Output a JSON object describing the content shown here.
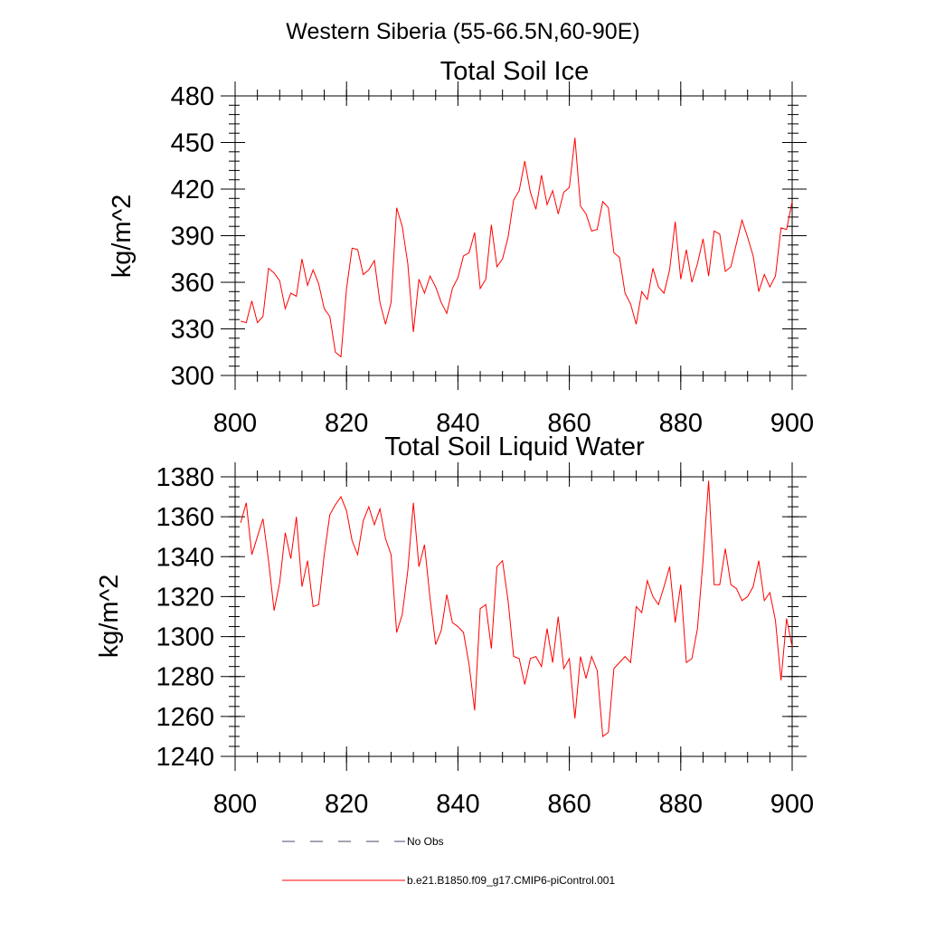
{
  "figure": {
    "title": "Western Siberia (55-66.5N,60-90E)"
  },
  "legend": {
    "entries": [
      {
        "label": "No Obs",
        "style": "dashed",
        "color": "#4a4a6a"
      },
      {
        "label": "b.e21.B1850.f09_g17.CMIP6-piControl.001",
        "style": "solid",
        "color": "#ff0000"
      }
    ]
  },
  "chart_data": [
    {
      "type": "line",
      "title": "Total Soil Ice",
      "xlabel": "",
      "ylabel": "kg/m^2",
      "xlim": [
        800,
        900
      ],
      "ylim": [
        300,
        480
      ],
      "x_ticks": [
        800,
        820,
        840,
        860,
        880,
        900
      ],
      "y_ticks": [
        300,
        330,
        360,
        390,
        420,
        450,
        480
      ],
      "y_minor_step": 6,
      "x_minor_step": 4,
      "grid": false,
      "series": [
        {
          "color": "#ff0000",
          "x": [
            801,
            802,
            803,
            804,
            805,
            806,
            807,
            808,
            809,
            810,
            811,
            812,
            813,
            814,
            815,
            816,
            817,
            818,
            819,
            820,
            821,
            822,
            823,
            824,
            825,
            826,
            827,
            828,
            829,
            830,
            831,
            832,
            833,
            834,
            835,
            836,
            837,
            838,
            839,
            840,
            841,
            842,
            843,
            844,
            845,
            846,
            847,
            848,
            849,
            850,
            851,
            852,
            853,
            854,
            855,
            856,
            857,
            858,
            859,
            860,
            861,
            862,
            863,
            864,
            865,
            866,
            867,
            868,
            869,
            870,
            871,
            872,
            873,
            874,
            875,
            876,
            877,
            878,
            879,
            880,
            881,
            882,
            883,
            884,
            885,
            886,
            887,
            888,
            889,
            890,
            891,
            892,
            893,
            894,
            895,
            896,
            897,
            898,
            899,
            900
          ],
          "values": [
            335,
            334,
            348,
            334,
            338,
            369,
            366,
            361,
            343,
            353,
            351,
            375,
            358,
            368,
            359,
            343,
            338,
            315,
            312,
            356,
            382,
            381,
            365,
            368,
            374,
            347,
            333,
            347,
            408,
            396,
            372,
            328,
            362,
            353,
            364,
            357,
            347,
            340,
            356,
            363,
            377,
            379,
            392,
            356,
            362,
            397,
            370,
            375,
            389,
            413,
            419,
            438,
            418,
            407,
            429,
            410,
            419,
            404,
            418,
            421,
            453,
            409,
            404,
            393,
            394,
            412,
            408,
            379,
            376,
            353,
            346,
            333,
            354,
            349,
            369,
            357,
            353,
            368,
            399,
            362,
            381,
            360,
            372,
            388,
            364,
            393,
            391,
            367,
            370,
            385,
            400,
            389,
            377,
            354,
            365,
            357,
            364,
            395,
            394,
            412
          ]
        }
      ]
    },
    {
      "type": "line",
      "title": "Total Soil Liquid Water",
      "xlabel": "",
      "ylabel": "kg/m^2",
      "xlim": [
        800,
        900
      ],
      "ylim": [
        1240,
        1380
      ],
      "x_ticks": [
        800,
        820,
        840,
        860,
        880,
        900
      ],
      "y_ticks": [
        1240,
        1260,
        1280,
        1300,
        1320,
        1340,
        1360,
        1380
      ],
      "y_minor_step": 5,
      "x_minor_step": 4,
      "grid": false,
      "series": [
        {
          "color": "#ff0000",
          "x": [
            801,
            802,
            803,
            804,
            805,
            806,
            807,
            808,
            809,
            810,
            811,
            812,
            813,
            814,
            815,
            816,
            817,
            818,
            819,
            820,
            821,
            822,
            823,
            824,
            825,
            826,
            827,
            828,
            829,
            830,
            831,
            832,
            833,
            834,
            835,
            836,
            837,
            838,
            839,
            840,
            841,
            842,
            843,
            844,
            845,
            846,
            847,
            848,
            849,
            850,
            851,
            852,
            853,
            854,
            855,
            856,
            857,
            858,
            859,
            860,
            861,
            862,
            863,
            864,
            865,
            866,
            867,
            868,
            869,
            870,
            871,
            872,
            873,
            874,
            875,
            876,
            877,
            878,
            879,
            880,
            881,
            882,
            883,
            884,
            885,
            886,
            887,
            888,
            889,
            890,
            891,
            892,
            893,
            894,
            895,
            896,
            897,
            898,
            899,
            900
          ],
          "values": [
            1357,
            1367,
            1341,
            1350,
            1359,
            1338,
            1313,
            1327,
            1352,
            1339,
            1360,
            1325,
            1338,
            1315,
            1316,
            1341,
            1361,
            1366,
            1370,
            1363,
            1348,
            1341,
            1358,
            1365,
            1356,
            1364,
            1349,
            1341,
            1302,
            1311,
            1333,
            1367,
            1335,
            1346,
            1319,
            1296,
            1303,
            1321,
            1307,
            1305,
            1302,
            1286,
            1263,
            1314,
            1316,
            1294,
            1335,
            1338,
            1318,
            1290,
            1289,
            1276,
            1289,
            1290,
            1285,
            1304,
            1287,
            1310,
            1284,
            1289,
            1259,
            1290,
            1279,
            1290,
            1283,
            1250,
            1252,
            1284,
            1287,
            1290,
            1287,
            1315,
            1312,
            1328,
            1320,
            1316,
            1325,
            1335,
            1307,
            1326,
            1287,
            1289,
            1304,
            1338,
            1378,
            1326,
            1326,
            1344,
            1326,
            1324,
            1318,
            1320,
            1325,
            1338,
            1318,
            1322,
            1308,
            1278,
            1309,
            1295
          ]
        }
      ]
    }
  ]
}
